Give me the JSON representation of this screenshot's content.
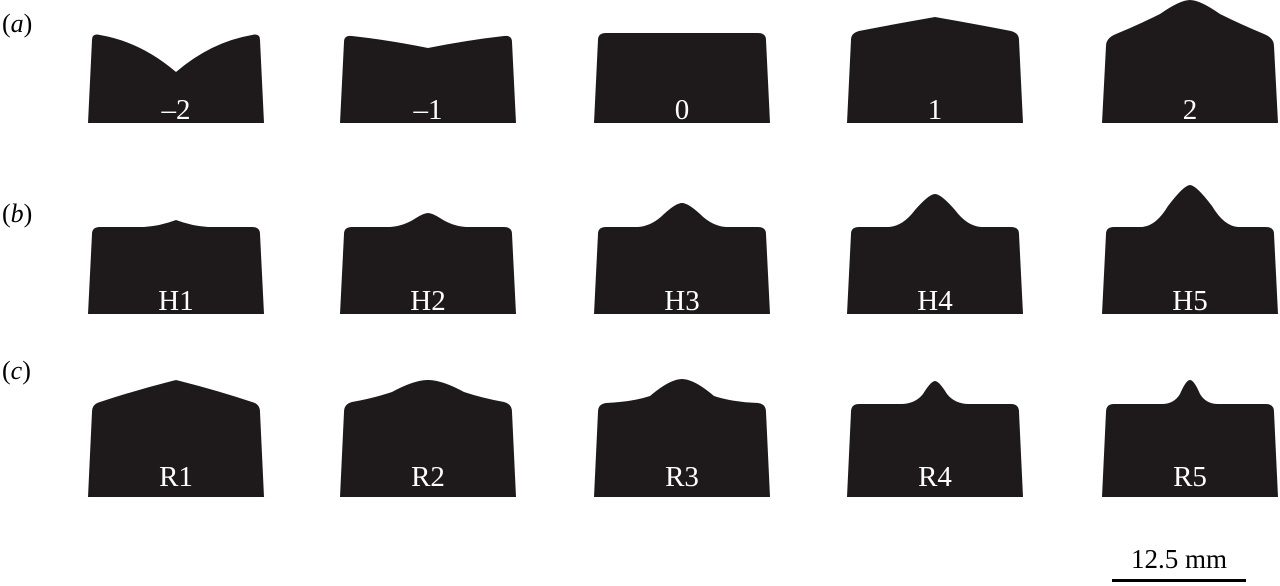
{
  "figure": {
    "fill_color": "#1e1a1b",
    "label_color": "#ffffff",
    "rows": [
      {
        "id": "a",
        "paren_open": "(",
        "letter": "a",
        "paren_close": ")",
        "shapes": [
          {
            "label": "–2",
            "profile": "dip-2"
          },
          {
            "label": "–1",
            "profile": "dip-1"
          },
          {
            "label": "0",
            "profile": "flat"
          },
          {
            "label": "1",
            "profile": "bump-1"
          },
          {
            "label": "2",
            "profile": "bump-2"
          }
        ]
      },
      {
        "id": "b",
        "paren_open": "(",
        "letter": "b",
        "paren_close": ")",
        "shapes": [
          {
            "label": "H1",
            "profile": "peak-h1"
          },
          {
            "label": "H2",
            "profile": "peak-h2"
          },
          {
            "label": "H3",
            "profile": "peak-h3"
          },
          {
            "label": "H4",
            "profile": "peak-h4"
          },
          {
            "label": "H5",
            "profile": "peak-h5"
          }
        ]
      },
      {
        "id": "c",
        "paren_open": "(",
        "letter": "c",
        "paren_close": ")",
        "shapes": [
          {
            "label": "R1",
            "profile": "round-r1"
          },
          {
            "label": "R2",
            "profile": "round-r2"
          },
          {
            "label": "R3",
            "profile": "round-r3"
          },
          {
            "label": "R4",
            "profile": "round-r4"
          },
          {
            "label": "R5",
            "profile": "round-r5"
          }
        ]
      }
    ],
    "scale_bar": {
      "label": "12.5 mm"
    }
  }
}
